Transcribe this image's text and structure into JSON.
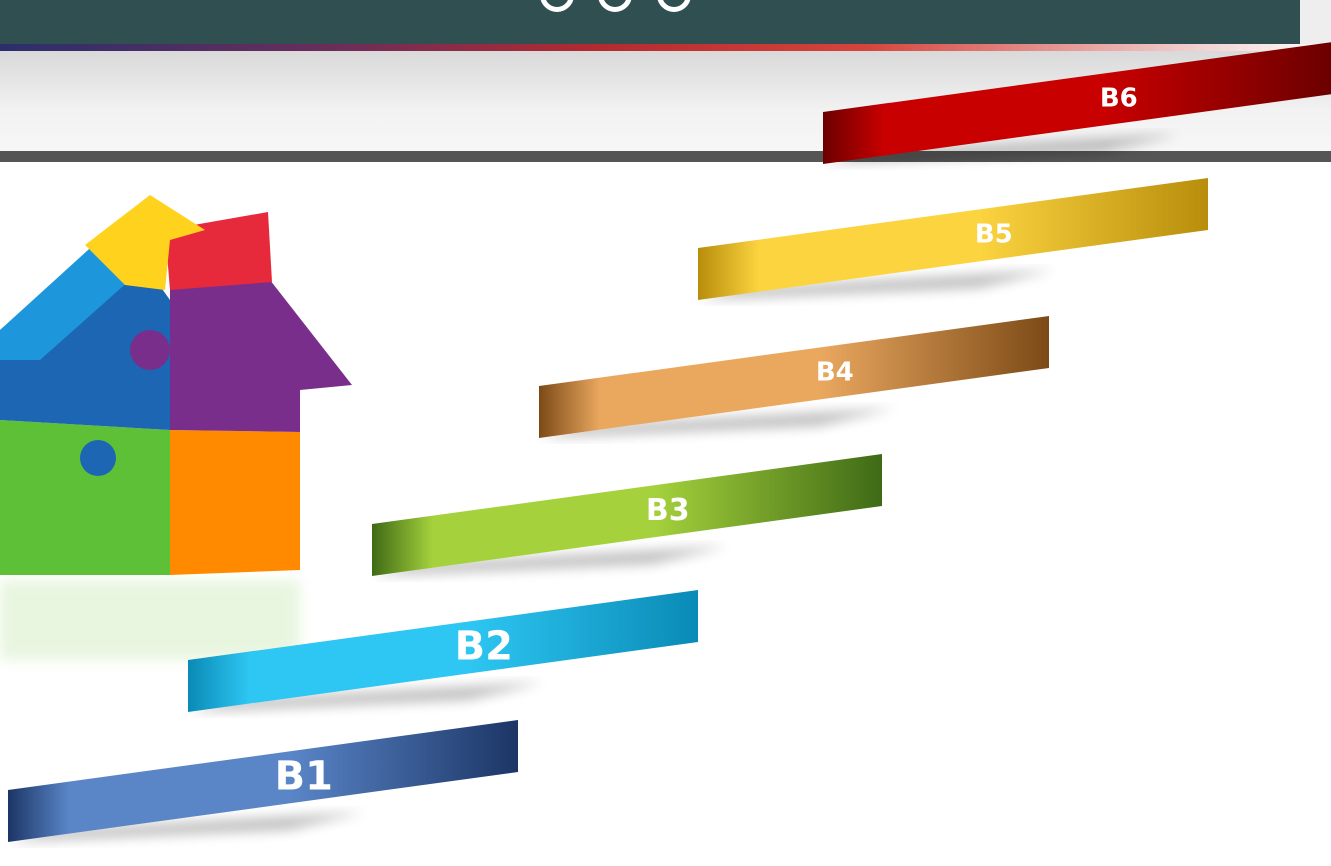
{
  "steps": [
    {
      "label": "B1",
      "color_light": "#5a86c8",
      "color_dark": "#1c3566"
    },
    {
      "label": "B2",
      "color_light": "#2ec6f2",
      "color_dark": "#0a8ab6"
    },
    {
      "label": "B3",
      "color_light": "#a5d23c",
      "color_dark": "#3f6a16"
    },
    {
      "label": "B4",
      "color_light": "#eaa85f",
      "color_dark": "#7c4a17"
    },
    {
      "label": "B5",
      "color_light": "#fcd440",
      "color_dark": "#b78d0b"
    },
    {
      "label": "B6",
      "color_light": "#c80000",
      "color_dark": "#6b0000"
    }
  ],
  "house_piece_colors": {
    "roof_left": "#1e96dc",
    "roof_top": "#ffd21e",
    "top_right": "#e62a3c",
    "middle": "#7a2e8c",
    "left_blue": "#1c66b4",
    "bottom_left": "#5ec036",
    "bottom_right": "#ff8a00"
  }
}
